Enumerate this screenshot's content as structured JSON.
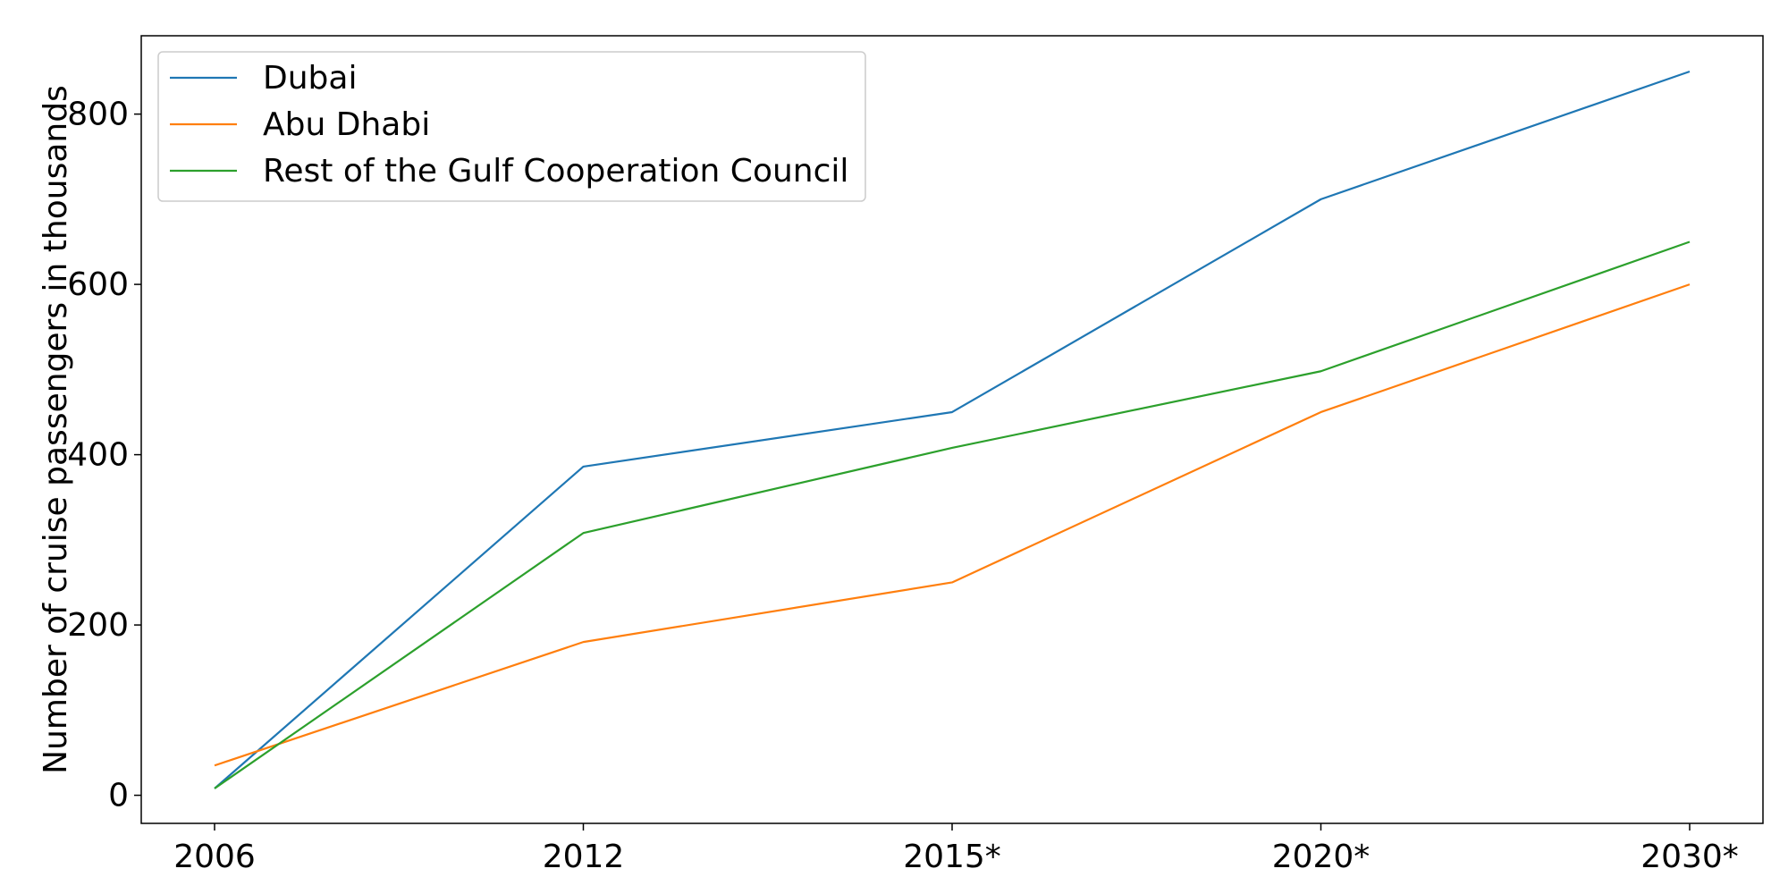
{
  "chart_data": {
    "type": "line",
    "title": "",
    "xlabel": "",
    "ylabel": "Number of cruise passengers in thousands",
    "categories": [
      "2006",
      "2012",
      "2015*",
      "2020*",
      "2030*"
    ],
    "ylim": [
      -33,
      892
    ],
    "yticks": [
      0,
      200,
      400,
      600,
      800
    ],
    "grid": false,
    "legend_position": "top-left",
    "series": [
      {
        "name": "Dubai",
        "color": "#1f77b4",
        "values": [
          8,
          386,
          450,
          700,
          850
        ]
      },
      {
        "name": "Abu Dhabi",
        "color": "#ff7f0e",
        "values": [
          35,
          180,
          250,
          450,
          600
        ]
      },
      {
        "name": "Rest of the Gulf Cooperation Council",
        "color": "#2ca02c",
        "values": [
          8,
          308,
          408,
          498,
          650
        ]
      }
    ]
  }
}
